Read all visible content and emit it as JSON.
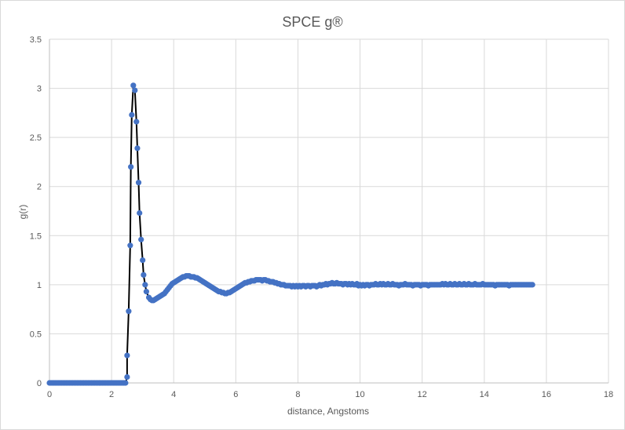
{
  "chart_data": {
    "type": "scatter",
    "title": "SPCE g®",
    "xlabel": "distance, Angstoms",
    "ylabel": "g(r)",
    "xlim": [
      0,
      18
    ],
    "ylim": [
      0,
      3.5
    ],
    "x_ticks": [
      "0",
      "2",
      "4",
      "6",
      "8",
      "10",
      "12",
      "14",
      "16",
      "18"
    ],
    "y_ticks": [
      "0",
      "0.5",
      "1",
      "1.5",
      "2",
      "2.5",
      "3",
      "3.5"
    ],
    "grid": true,
    "legend": "none",
    "line_color": "#000000",
    "marker_color": "#4472c4",
    "points": [
      [
        0.0,
        0.0
      ],
      [
        0.05,
        0.0
      ],
      [
        0.1,
        0.0
      ],
      [
        0.15,
        0.0
      ],
      [
        0.2,
        0.0
      ],
      [
        0.25,
        0.0
      ],
      [
        0.3,
        0.0
      ],
      [
        0.35,
        0.0
      ],
      [
        0.4,
        0.0
      ],
      [
        0.45,
        0.0
      ],
      [
        0.5,
        0.0
      ],
      [
        0.55,
        0.0
      ],
      [
        0.6,
        0.0
      ],
      [
        0.65,
        0.0
      ],
      [
        0.7,
        0.0
      ],
      [
        0.75,
        0.0
      ],
      [
        0.8,
        0.0
      ],
      [
        0.85,
        0.0
      ],
      [
        0.9,
        0.0
      ],
      [
        0.95,
        0.0
      ],
      [
        1.0,
        0.0
      ],
      [
        1.05,
        0.0
      ],
      [
        1.1,
        0.0
      ],
      [
        1.15,
        0.0
      ],
      [
        1.2,
        0.0
      ],
      [
        1.25,
        0.0
      ],
      [
        1.3,
        0.0
      ],
      [
        1.35,
        0.0
      ],
      [
        1.4,
        0.0
      ],
      [
        1.45,
        0.0
      ],
      [
        1.5,
        0.0
      ],
      [
        1.55,
        0.0
      ],
      [
        1.6,
        0.0
      ],
      [
        1.65,
        0.0
      ],
      [
        1.7,
        0.0
      ],
      [
        1.75,
        0.0
      ],
      [
        1.8,
        0.0
      ],
      [
        1.85,
        0.0
      ],
      [
        1.9,
        0.0
      ],
      [
        1.95,
        0.0
      ],
      [
        2.0,
        0.0
      ],
      [
        2.05,
        0.0
      ],
      [
        2.1,
        0.0
      ],
      [
        2.15,
        0.0
      ],
      [
        2.2,
        0.0
      ],
      [
        2.25,
        0.0
      ],
      [
        2.3,
        0.0
      ],
      [
        2.35,
        0.0
      ],
      [
        2.4,
        0.0
      ],
      [
        2.45,
        0.0
      ],
      [
        2.5,
        0.06
      ],
      [
        2.5,
        0.28
      ],
      [
        2.55,
        0.73
      ],
      [
        2.6,
        1.4
      ],
      [
        2.62,
        2.2
      ],
      [
        2.65,
        2.73
      ],
      [
        2.7,
        3.03
      ],
      [
        2.75,
        2.98
      ],
      [
        2.8,
        2.66
      ],
      [
        2.83,
        2.39
      ],
      [
        2.87,
        2.04
      ],
      [
        2.9,
        1.73
      ],
      [
        2.95,
        1.46
      ],
      [
        3.0,
        1.25
      ],
      [
        3.03,
        1.1
      ],
      [
        3.08,
        1.0
      ],
      [
        3.12,
        0.93
      ],
      [
        3.2,
        0.87
      ],
      [
        3.25,
        0.85
      ],
      [
        3.3,
        0.84
      ],
      [
        3.35,
        0.84
      ],
      [
        3.4,
        0.85
      ],
      [
        3.45,
        0.86
      ],
      [
        3.5,
        0.87
      ],
      [
        3.55,
        0.88
      ],
      [
        3.6,
        0.89
      ],
      [
        3.65,
        0.9
      ],
      [
        3.7,
        0.91
      ],
      [
        3.75,
        0.93
      ],
      [
        3.8,
        0.95
      ],
      [
        3.85,
        0.97
      ],
      [
        3.9,
        0.99
      ],
      [
        3.95,
        1.01
      ],
      [
        4.0,
        1.02
      ],
      [
        4.05,
        1.03
      ],
      [
        4.1,
        1.04
      ],
      [
        4.15,
        1.05
      ],
      [
        4.2,
        1.06
      ],
      [
        4.25,
        1.07
      ],
      [
        4.3,
        1.08
      ],
      [
        4.35,
        1.08
      ],
      [
        4.4,
        1.09
      ],
      [
        4.45,
        1.09
      ],
      [
        4.5,
        1.09
      ],
      [
        4.55,
        1.08
      ],
      [
        4.6,
        1.08
      ],
      [
        4.65,
        1.08
      ],
      [
        4.7,
        1.07
      ],
      [
        4.75,
        1.07
      ],
      [
        4.8,
        1.06
      ],
      [
        4.85,
        1.05
      ],
      [
        4.9,
        1.04
      ],
      [
        4.95,
        1.03
      ],
      [
        5.0,
        1.02
      ],
      [
        5.05,
        1.01
      ],
      [
        5.1,
        1.0
      ],
      [
        5.15,
        0.99
      ],
      [
        5.2,
        0.98
      ],
      [
        5.25,
        0.97
      ],
      [
        5.3,
        0.96
      ],
      [
        5.35,
        0.95
      ],
      [
        5.4,
        0.94
      ],
      [
        5.45,
        0.93
      ],
      [
        5.5,
        0.93
      ],
      [
        5.55,
        0.92
      ],
      [
        5.6,
        0.92
      ],
      [
        5.65,
        0.91
      ],
      [
        5.7,
        0.91
      ],
      [
        5.75,
        0.92
      ],
      [
        5.8,
        0.92
      ],
      [
        5.85,
        0.93
      ],
      [
        5.9,
        0.94
      ],
      [
        5.95,
        0.95
      ],
      [
        6.0,
        0.96
      ],
      [
        6.05,
        0.97
      ],
      [
        6.1,
        0.98
      ],
      [
        6.15,
        0.99
      ],
      [
        6.2,
        1.0
      ],
      [
        6.25,
        1.01
      ],
      [
        6.3,
        1.02
      ],
      [
        6.35,
        1.02
      ],
      [
        6.4,
        1.03
      ],
      [
        6.45,
        1.03
      ],
      [
        6.5,
        1.04
      ],
      [
        6.55,
        1.04
      ],
      [
        6.6,
        1.04
      ],
      [
        6.65,
        1.05
      ],
      [
        6.7,
        1.05
      ],
      [
        6.75,
        1.05
      ],
      [
        6.8,
        1.05
      ],
      [
        6.85,
        1.04
      ],
      [
        6.9,
        1.05
      ],
      [
        6.95,
        1.05
      ],
      [
        7.0,
        1.04
      ],
      [
        7.05,
        1.04
      ],
      [
        7.1,
        1.03
      ],
      [
        7.15,
        1.03
      ],
      [
        7.2,
        1.03
      ],
      [
        7.25,
        1.02
      ],
      [
        7.3,
        1.02
      ],
      [
        7.35,
        1.01
      ],
      [
        7.4,
        1.01
      ],
      [
        7.45,
        1.0
      ],
      [
        7.5,
        1.0
      ],
      [
        7.55,
        1.0
      ],
      [
        7.6,
        0.99
      ],
      [
        7.65,
        0.99
      ],
      [
        7.7,
        0.99
      ],
      [
        7.75,
        0.99
      ],
      [
        7.8,
        0.98
      ],
      [
        7.85,
        0.99
      ],
      [
        7.9,
        0.98
      ],
      [
        7.95,
        0.99
      ],
      [
        8.0,
        0.98
      ],
      [
        8.05,
        0.99
      ],
      [
        8.1,
        0.98
      ],
      [
        8.15,
        0.99
      ],
      [
        8.2,
        0.99
      ],
      [
        8.25,
        0.98
      ],
      [
        8.3,
        0.99
      ],
      [
        8.35,
        0.99
      ],
      [
        8.4,
        0.98
      ],
      [
        8.45,
        0.99
      ],
      [
        8.5,
        0.99
      ],
      [
        8.55,
        0.99
      ],
      [
        8.6,
        0.98
      ],
      [
        8.65,
        0.99
      ],
      [
        8.7,
        1.0
      ],
      [
        8.75,
        0.99
      ],
      [
        8.8,
        1.0
      ],
      [
        8.85,
        1.0
      ],
      [
        8.9,
        1.01
      ],
      [
        8.95,
        1.0
      ],
      [
        9.0,
        1.01
      ],
      [
        9.05,
        1.01
      ],
      [
        9.1,
        1.02
      ],
      [
        9.15,
        1.01
      ],
      [
        9.2,
        1.01
      ],
      [
        9.25,
        1.02
      ],
      [
        9.3,
        1.01
      ],
      [
        9.35,
        1.01
      ],
      [
        9.4,
        1.01
      ],
      [
        9.45,
        1.0
      ],
      [
        9.5,
        1.01
      ],
      [
        9.55,
        1.01
      ],
      [
        9.6,
        1.0
      ],
      [
        9.65,
        1.01
      ],
      [
        9.7,
        1.0
      ],
      [
        9.75,
        1.01
      ],
      [
        9.8,
        1.0
      ],
      [
        9.85,
        1.0
      ],
      [
        9.9,
        1.01
      ],
      [
        9.95,
        0.99
      ],
      [
        10.0,
        1.0
      ],
      [
        10.05,
        0.99
      ],
      [
        10.1,
        1.0
      ],
      [
        10.15,
        0.99
      ],
      [
        10.2,
        1.0
      ],
      [
        10.25,
        1.0
      ],
      [
        10.3,
        0.99
      ],
      [
        10.35,
        1.0
      ],
      [
        10.4,
        1.0
      ],
      [
        10.45,
        1.0
      ],
      [
        10.5,
        1.01
      ],
      [
        10.55,
        1.0
      ],
      [
        10.6,
        1.0
      ],
      [
        10.65,
        1.01
      ],
      [
        10.7,
        1.0
      ],
      [
        10.75,
        1.01
      ],
      [
        10.8,
        1.0
      ],
      [
        10.85,
        1.0
      ],
      [
        10.9,
        1.01
      ],
      [
        10.95,
        1.0
      ],
      [
        11.0,
        1.0
      ],
      [
        11.05,
        1.01
      ],
      [
        11.1,
        1.0
      ],
      [
        11.15,
        1.0
      ],
      [
        11.2,
        1.0
      ],
      [
        11.25,
        0.99
      ],
      [
        11.3,
        1.0
      ],
      [
        11.35,
        1.0
      ],
      [
        11.4,
        1.0
      ],
      [
        11.45,
        1.01
      ],
      [
        11.5,
        1.0
      ],
      [
        11.55,
        1.0
      ],
      [
        11.6,
        1.0
      ],
      [
        11.65,
        1.0
      ],
      [
        11.7,
        0.99
      ],
      [
        11.75,
        1.0
      ],
      [
        11.8,
        1.0
      ],
      [
        11.85,
        1.0
      ],
      [
        11.9,
        1.0
      ],
      [
        11.95,
        0.99
      ],
      [
        12.0,
        1.0
      ],
      [
        12.05,
        1.0
      ],
      [
        12.1,
        1.0
      ],
      [
        12.15,
        1.0
      ],
      [
        12.2,
        0.99
      ],
      [
        12.25,
        1.0
      ],
      [
        12.3,
        1.0
      ],
      [
        12.35,
        1.0
      ],
      [
        12.4,
        1.0
      ],
      [
        12.45,
        1.0
      ],
      [
        12.5,
        1.0
      ],
      [
        12.55,
        1.0
      ],
      [
        12.6,
        1.0
      ],
      [
        12.65,
        1.01
      ],
      [
        12.7,
        1.0
      ],
      [
        12.75,
        1.01
      ],
      [
        12.8,
        1.0
      ],
      [
        12.85,
        1.0
      ],
      [
        12.9,
        1.01
      ],
      [
        12.95,
        1.0
      ],
      [
        13.0,
        1.0
      ],
      [
        13.05,
        1.01
      ],
      [
        13.1,
        1.0
      ],
      [
        13.15,
        1.0
      ],
      [
        13.2,
        1.01
      ],
      [
        13.25,
        1.0
      ],
      [
        13.3,
        1.0
      ],
      [
        13.35,
        1.01
      ],
      [
        13.4,
        1.0
      ],
      [
        13.45,
        1.0
      ],
      [
        13.5,
        1.01
      ],
      [
        13.55,
        1.0
      ],
      [
        13.6,
        1.0
      ],
      [
        13.65,
        1.0
      ],
      [
        13.7,
        1.01
      ],
      [
        13.75,
        1.0
      ],
      [
        13.8,
        1.0
      ],
      [
        13.85,
        1.0
      ],
      [
        13.9,
        1.0
      ],
      [
        13.95,
        1.01
      ],
      [
        14.0,
        1.0
      ],
      [
        14.05,
        1.0
      ],
      [
        14.1,
        1.0
      ],
      [
        14.15,
        1.0
      ],
      [
        14.2,
        1.0
      ],
      [
        14.25,
        1.0
      ],
      [
        14.3,
        1.0
      ],
      [
        14.35,
        0.99
      ],
      [
        14.4,
        1.0
      ],
      [
        14.45,
        1.0
      ],
      [
        14.5,
        1.0
      ],
      [
        14.55,
        1.0
      ],
      [
        14.6,
        1.0
      ],
      [
        14.65,
        1.0
      ],
      [
        14.7,
        1.0
      ],
      [
        14.75,
        1.0
      ],
      [
        14.8,
        0.99
      ],
      [
        14.85,
        1.0
      ],
      [
        14.9,
        1.0
      ],
      [
        14.95,
        1.0
      ],
      [
        15.0,
        1.0
      ],
      [
        15.05,
        1.0
      ],
      [
        15.1,
        1.0
      ],
      [
        15.15,
        1.0
      ],
      [
        15.2,
        1.0
      ],
      [
        15.25,
        1.0
      ],
      [
        15.3,
        1.0
      ],
      [
        15.35,
        1.0
      ],
      [
        15.4,
        1.0
      ],
      [
        15.45,
        1.0
      ],
      [
        15.5,
        1.0
      ],
      [
        15.55,
        1.0
      ]
    ]
  }
}
